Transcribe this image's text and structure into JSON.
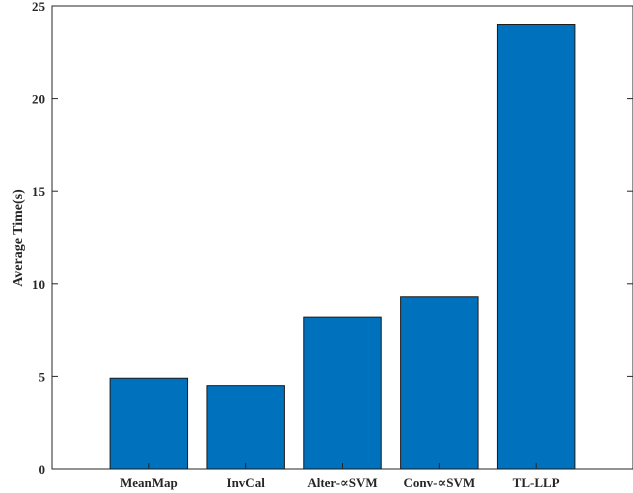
{
  "chart_data": {
    "type": "bar",
    "title": "",
    "xlabel": "",
    "ylabel": "Average Time(s)",
    "categories": [
      "MeanMap",
      "InvCal",
      "Alter-∝SVM",
      "Conv-∝SVM",
      "TL-LLP"
    ],
    "values": [
      4.9,
      4.5,
      8.2,
      9.3,
      24.0
    ],
    "ylim": [
      0,
      25
    ],
    "yticks": [
      0,
      5,
      10,
      15,
      20,
      25
    ],
    "grid": false,
    "bar_color": "#0072BD",
    "bar_edge_color": "#1a1a1a"
  }
}
